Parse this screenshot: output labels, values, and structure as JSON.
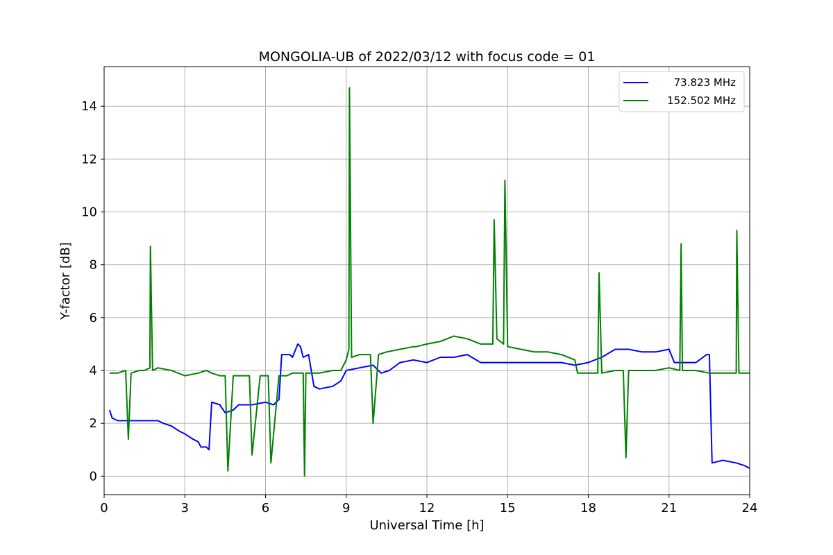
{
  "chart_data": {
    "type": "line",
    "title": "MONGOLIA-UB of 2022/03/12 with focus code = 01",
    "xlabel": "Universal Time [h]",
    "ylabel": "Y-factor [dB]",
    "xlim": [
      0,
      24
    ],
    "ylim": [
      -0.7,
      15.5
    ],
    "xticks": [
      0,
      3,
      6,
      9,
      12,
      15,
      18,
      21,
      24
    ],
    "yticks": [
      0,
      2,
      4,
      6,
      8,
      10,
      12,
      14
    ],
    "grid": true,
    "legend_position": "top-right",
    "series": [
      {
        "name": "73.823 MHz",
        "color": "#0000ff",
        "x": [
          0.2,
          0.3,
          0.5,
          1.0,
          1.5,
          2.0,
          2.2,
          2.5,
          2.8,
          3.0,
          3.3,
          3.5,
          3.6,
          3.8,
          3.9,
          4.0,
          4.3,
          4.5,
          4.8,
          5.0,
          5.5,
          6.0,
          6.3,
          6.5,
          6.6,
          6.9,
          7.0,
          7.2,
          7.3,
          7.4,
          7.6,
          7.8,
          8.0,
          8.5,
          8.8,
          9.0,
          9.5,
          10.0,
          10.3,
          10.6,
          11.0,
          11.5,
          12.0,
          12.5,
          13.0,
          13.5,
          14.0,
          14.5,
          15.0,
          15.5,
          16.0,
          16.5,
          17.0,
          17.5,
          18.0,
          18.5,
          19.0,
          19.5,
          20.0,
          20.5,
          21.0,
          21.2,
          21.5,
          22.0,
          22.4,
          22.5,
          22.6,
          23.0,
          23.5,
          23.8,
          24.0
        ],
        "values": [
          2.5,
          2.2,
          2.1,
          2.1,
          2.1,
          2.1,
          2.0,
          1.9,
          1.7,
          1.6,
          1.4,
          1.3,
          1.1,
          1.1,
          1.0,
          2.8,
          2.7,
          2.4,
          2.5,
          2.7,
          2.7,
          2.8,
          2.7,
          2.9,
          4.6,
          4.6,
          4.5,
          5.0,
          4.9,
          4.5,
          4.6,
          3.4,
          3.3,
          3.4,
          3.6,
          4.0,
          4.1,
          4.2,
          3.9,
          4.0,
          4.3,
          4.4,
          4.3,
          4.5,
          4.5,
          4.6,
          4.3,
          4.3,
          4.3,
          4.3,
          4.3,
          4.3,
          4.3,
          4.2,
          4.3,
          4.5,
          4.8,
          4.8,
          4.7,
          4.7,
          4.8,
          4.3,
          4.3,
          4.3,
          4.6,
          4.6,
          0.5,
          0.6,
          0.5,
          0.4,
          0.3
        ]
      },
      {
        "name": "152.502 MHz",
        "color": "#008000",
        "x": [
          0.2,
          0.5,
          0.8,
          0.9,
          1.0,
          1.3,
          1.5,
          1.7,
          1.72,
          1.8,
          2.0,
          2.5,
          3.0,
          3.5,
          3.8,
          4.0,
          4.3,
          4.5,
          4.6,
          4.8,
          5.0,
          5.4,
          5.5,
          5.8,
          6.1,
          6.2,
          6.5,
          6.8,
          7.0,
          7.4,
          7.45,
          7.5,
          7.8,
          8.0,
          8.5,
          8.8,
          9.0,
          9.1,
          9.12,
          9.2,
          9.5,
          9.9,
          10.0,
          10.2,
          10.5,
          11.0,
          11.5,
          11.6,
          12.0,
          12.5,
          13.0,
          13.5,
          14.0,
          14.45,
          14.5,
          14.6,
          14.85,
          14.9,
          15.0,
          15.5,
          16.0,
          16.5,
          17.0,
          17.5,
          17.6,
          18.0,
          18.35,
          18.4,
          18.5,
          19.0,
          19.3,
          19.4,
          19.5,
          20.0,
          20.5,
          21.0,
          21.4,
          21.45,
          21.5,
          22.0,
          22.5,
          23.0,
          23.5,
          23.52,
          23.6,
          24.0
        ],
        "values": [
          3.9,
          3.9,
          4.0,
          1.4,
          3.9,
          4.0,
          4.0,
          4.1,
          8.7,
          4.0,
          4.1,
          4.0,
          3.8,
          3.9,
          4.0,
          3.9,
          3.8,
          3.8,
          0.2,
          3.8,
          3.8,
          3.8,
          0.8,
          3.8,
          3.8,
          0.5,
          3.8,
          3.8,
          3.9,
          3.9,
          0.0,
          3.9,
          3.9,
          3.9,
          4.0,
          4.0,
          4.4,
          4.8,
          14.7,
          4.5,
          4.6,
          4.6,
          2.0,
          4.6,
          4.7,
          4.8,
          4.9,
          4.9,
          5.0,
          5.1,
          5.3,
          5.2,
          5.0,
          5.0,
          9.7,
          5.2,
          5.0,
          11.2,
          4.9,
          4.8,
          4.7,
          4.7,
          4.6,
          4.4,
          3.9,
          3.9,
          3.9,
          7.7,
          3.9,
          4.0,
          4.0,
          0.7,
          4.0,
          4.0,
          4.0,
          4.1,
          4.0,
          8.8,
          4.0,
          4.0,
          3.9,
          3.9,
          3.9,
          9.3,
          3.9,
          3.9
        ]
      }
    ]
  }
}
